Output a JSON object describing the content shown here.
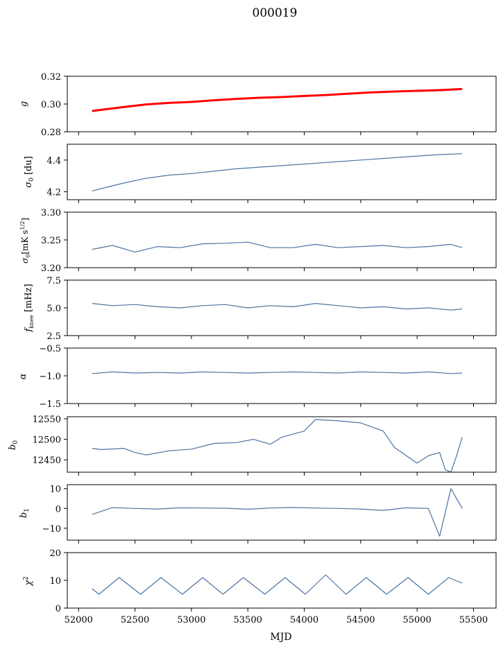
{
  "figure": {
    "title": "000019",
    "xlabel": "MJD"
  },
  "colors": {
    "series": "#4c72a0",
    "fit": "#ff0000",
    "axis": "#000000",
    "background": "#ffffff"
  },
  "chart_data": [
    {
      "type": "line",
      "ylabel": "g",
      "xlim": [
        51900,
        55700
      ],
      "ylim": [
        0.28,
        0.32
      ],
      "yticks": [
        0.28,
        0.3,
        0.32
      ],
      "ytick_labels": [
        "0.28",
        "0.30",
        "0.32"
      ],
      "x": [
        52120,
        52200,
        52400,
        52600,
        52800,
        53000,
        53200,
        53400,
        53600,
        53800,
        54000,
        54200,
        54400,
        54600,
        54800,
        55000,
        55200,
        55400
      ],
      "series": [
        {
          "values": [
            0.2945,
            0.2955,
            0.2975,
            0.2995,
            0.3005,
            0.3012,
            0.3025,
            0.3035,
            0.3042,
            0.3048,
            0.3055,
            0.3062,
            0.3072,
            0.3082,
            0.3088,
            0.3092,
            0.3095,
            0.3105
          ]
        },
        {
          "values": [
            0.295,
            0.2958,
            0.2978,
            0.2997,
            0.3008,
            0.3015,
            0.3027,
            0.3037,
            0.3045,
            0.305,
            0.3058,
            0.3065,
            0.3075,
            0.3084,
            0.309,
            0.3095,
            0.31,
            0.3108
          ]
        }
      ]
    },
    {
      "type": "line",
      "ylabel": "σ0 [du]",
      "xlim": [
        51900,
        55700
      ],
      "ylim": [
        4.15,
        4.5
      ],
      "yticks": [
        4.2,
        4.4
      ],
      "ytick_labels": [
        "4.2",
        "4.4"
      ],
      "x": [
        52120,
        52200,
        52400,
        52600,
        52800,
        53000,
        53200,
        53400,
        53600,
        53800,
        54000,
        54200,
        54400,
        54600,
        54800,
        55000,
        55200,
        55400
      ],
      "series": [
        {
          "values": [
            4.205,
            4.22,
            4.255,
            4.285,
            4.305,
            4.315,
            4.33,
            4.345,
            4.355,
            4.365,
            4.375,
            4.385,
            4.395,
            4.405,
            4.415,
            4.425,
            4.435,
            4.44
          ]
        }
      ]
    },
    {
      "type": "line",
      "ylabel": "σ0[mK s^1/2]",
      "xlim": [
        51900,
        55700
      ],
      "ylim": [
        3.2,
        3.3
      ],
      "yticks": [
        3.2,
        3.25,
        3.3
      ],
      "ytick_labels": [
        "3.20",
        "3.25",
        "3.30"
      ],
      "x": [
        52120,
        52300,
        52500,
        52700,
        52900,
        53100,
        53300,
        53500,
        53700,
        53900,
        54100,
        54300,
        54500,
        54700,
        54900,
        55100,
        55300,
        55400
      ],
      "series": [
        {
          "values": [
            3.233,
            3.24,
            3.228,
            3.238,
            3.236,
            3.243,
            3.244,
            3.246,
            3.236,
            3.236,
            3.242,
            3.236,
            3.238,
            3.24,
            3.236,
            3.238,
            3.242,
            3.236
          ]
        }
      ]
    },
    {
      "type": "line",
      "ylabel": "fknee [mHz]",
      "xlim": [
        51900,
        55700
      ],
      "ylim": [
        2.5,
        7.5
      ],
      "yticks": [
        2.5,
        5.0,
        7.5
      ],
      "ytick_labels": [
        "2.5",
        "5.0",
        "7.5"
      ],
      "x": [
        52120,
        52300,
        52500,
        52700,
        52900,
        53100,
        53300,
        53500,
        53700,
        53900,
        54100,
        54300,
        54500,
        54700,
        54900,
        55100,
        55300,
        55400
      ],
      "series": [
        {
          "values": [
            5.4,
            5.2,
            5.3,
            5.1,
            5.0,
            5.2,
            5.3,
            5.0,
            5.2,
            5.1,
            5.4,
            5.2,
            5.0,
            5.1,
            4.9,
            5.0,
            4.8,
            4.9
          ]
        }
      ]
    },
    {
      "type": "line",
      "ylabel": "α",
      "xlim": [
        51900,
        55700
      ],
      "ylim": [
        -1.5,
        -0.5
      ],
      "yticks": [
        -1.5,
        -1.0,
        -0.5
      ],
      "ytick_labels": [
        "−1.5",
        "−1.0",
        "−0.5"
      ],
      "x": [
        52120,
        52300,
        52500,
        52700,
        52900,
        53100,
        53300,
        53500,
        53700,
        53900,
        54100,
        54300,
        54500,
        54700,
        54900,
        55100,
        55300,
        55400
      ],
      "series": [
        {
          "values": [
            -0.96,
            -0.93,
            -0.95,
            -0.94,
            -0.95,
            -0.93,
            -0.94,
            -0.95,
            -0.94,
            -0.93,
            -0.94,
            -0.95,
            -0.93,
            -0.94,
            -0.95,
            -0.93,
            -0.96,
            -0.95
          ]
        }
      ]
    },
    {
      "type": "line",
      "ylabel": "b0",
      "xlim": [
        51900,
        55700
      ],
      "ylim": [
        12420,
        12555
      ],
      "yticks": [
        12450,
        12500,
        12550
      ],
      "ytick_labels": [
        "12450",
        "12500",
        "12550"
      ],
      "x": [
        52120,
        52200,
        52400,
        52500,
        52600,
        52800,
        53000,
        53200,
        53400,
        53550,
        53700,
        53800,
        54000,
        54100,
        54300,
        54500,
        54700,
        54800,
        55000,
        55100,
        55200,
        55250,
        55300,
        55350,
        55400
      ],
      "series": [
        {
          "values": [
            12478,
            12475,
            12478,
            12468,
            12462,
            12472,
            12476,
            12490,
            12492,
            12500,
            12488,
            12505,
            12520,
            12548,
            12545,
            12540,
            12520,
            12480,
            12442,
            12460,
            12468,
            12426,
            12420,
            12460,
            12505
          ]
        }
      ]
    },
    {
      "type": "line",
      "ylabel": "b1",
      "xlim": [
        51900,
        55700
      ],
      "ylim": [
        -16,
        12
      ],
      "yticks": [
        -10,
        0,
        10
      ],
      "ytick_labels": [
        "−10",
        "0",
        "10"
      ],
      "x": [
        52120,
        52300,
        52500,
        52700,
        52900,
        53100,
        53300,
        53500,
        53700,
        53900,
        54100,
        54300,
        54500,
        54700,
        54900,
        55100,
        55200,
        55300,
        55400
      ],
      "series": [
        {
          "values": [
            -3,
            0.4,
            0.0,
            -0.3,
            0.3,
            0.2,
            0.1,
            -0.4,
            0.2,
            0.5,
            0.2,
            0.0,
            -0.3,
            -1.0,
            0.3,
            0.0,
            -14,
            10,
            0
          ]
        }
      ]
    },
    {
      "type": "line",
      "ylabel": "χ2",
      "xlim": [
        51900,
        55700
      ],
      "ylim": [
        0,
        20
      ],
      "yticks": [
        0,
        10,
        20
      ],
      "ytick_labels": [
        "0",
        "10",
        "20"
      ],
      "x": [
        52120,
        52180,
        52360,
        52550,
        52730,
        52920,
        53100,
        53280,
        53460,
        53650,
        53830,
        54010,
        54190,
        54370,
        54550,
        54730,
        54920,
        55100,
        55280,
        55400
      ],
      "series": [
        {
          "values": [
            7,
            5,
            11,
            5,
            11,
            5,
            11,
            5,
            11,
            5,
            11,
            5,
            12,
            5,
            11,
            5,
            11,
            5,
            11,
            9
          ]
        }
      ]
    }
  ]
}
